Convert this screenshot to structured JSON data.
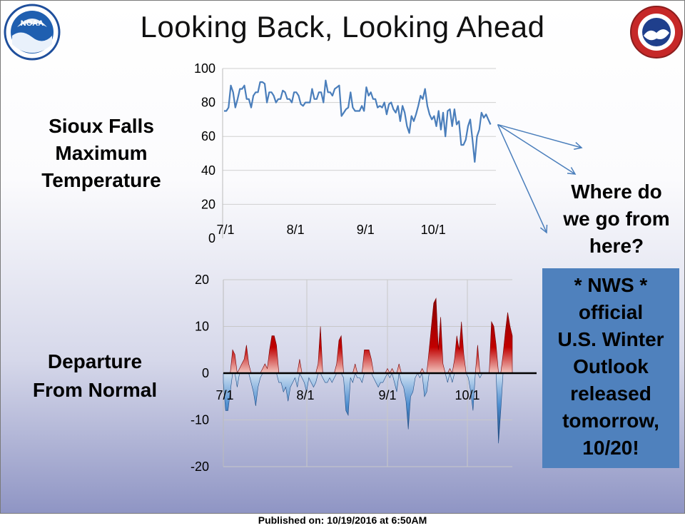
{
  "title": "Looking Back, Looking Ahead",
  "footer": "Published on: 10/19/2016 at 6:50AM",
  "left_labels": {
    "top_line1": "Sioux Falls",
    "top_line2": "Maximum",
    "top_line3": "Temperature",
    "bottom_line1": "Departure",
    "bottom_line2": "From Normal"
  },
  "question": {
    "line1": "Where do",
    "line2": "we go from",
    "line3": "here?"
  },
  "outlook": {
    "line1": "* NWS *",
    "line2": "official",
    "line3": "U.S. Winter",
    "line4": "Outlook",
    "line5": "released",
    "line6": "tomorrow,",
    "line7": "10/20!",
    "box_color": "#4f81bd"
  },
  "logos": {
    "left": "NOAA",
    "right_icon": "nws-logo-icon"
  },
  "chart_data": [
    {
      "type": "line",
      "ylim": [
        0,
        100
      ],
      "yticks": [
        0,
        20,
        40,
        60,
        80,
        100
      ],
      "xticks": [
        "7/1",
        "8/1",
        "9/1",
        "10/1"
      ],
      "start": "7/1",
      "color": "#4a7ebb",
      "values": [
        75,
        75,
        77,
        90,
        86,
        77,
        82,
        88,
        88,
        90,
        82,
        82,
        77,
        84,
        86,
        86,
        92,
        92,
        91,
        80,
        86,
        86,
        84,
        80,
        82,
        82,
        87,
        86,
        82,
        82,
        80,
        86,
        86,
        84,
        79,
        78,
        80,
        80,
        80,
        88,
        82,
        82,
        86,
        86,
        80,
        93,
        86,
        86,
        84,
        88,
        89,
        90,
        72,
        74,
        76,
        77,
        86,
        77,
        75,
        75,
        75,
        78,
        75,
        89,
        84,
        86,
        82,
        82,
        77,
        78,
        77,
        80,
        73,
        79,
        80,
        76,
        74,
        78,
        69,
        78,
        74,
        66,
        62,
        72,
        69,
        73,
        78,
        84,
        82,
        88,
        78,
        73,
        70,
        72,
        66,
        75,
        64,
        74,
        60,
        75,
        76,
        66,
        76,
        67,
        69,
        55,
        55,
        58,
        66,
        70,
        58,
        45,
        60,
        64,
        74,
        71,
        73,
        70,
        67
      ],
      "annotation_arrows_from_last_point": 3
    },
    {
      "type": "area",
      "ylim": [
        -20,
        20
      ],
      "yticks": [
        -20,
        -10,
        0,
        10,
        20
      ],
      "xticks": [
        "7/1",
        "8/1",
        "9/1",
        "10/1"
      ],
      "start": "7/1",
      "positive_color": "#c00000",
      "negative_color": "#2e6da4",
      "values": [
        -2,
        -8,
        -8,
        -4,
        5,
        4,
        -3,
        1,
        2,
        3,
        6,
        2,
        -2,
        -4,
        -7,
        -3,
        -1,
        1,
        2,
        1,
        5,
        8,
        8,
        6,
        -2,
        -2,
        -4,
        -3,
        -6,
        -3,
        -2,
        -1,
        -3,
        3,
        -1,
        -2,
        -4,
        -1,
        -2,
        -3,
        -2,
        2,
        10,
        -1,
        -2,
        -2,
        -1,
        -2,
        -1,
        2,
        7,
        8,
        -1,
        -8,
        -9,
        -1,
        -2,
        2,
        -1,
        -1,
        -2,
        5,
        5,
        5,
        3,
        -1,
        -2,
        -3,
        -2,
        -2,
        -1,
        1,
        -1,
        1,
        -2,
        -4,
        2,
        -2,
        -3,
        -6,
        -12,
        -5,
        -4,
        -1,
        0,
        -1,
        1,
        -5,
        -4,
        5,
        10,
        15,
        16,
        5,
        12,
        2,
        0,
        -2,
        1,
        -2,
        3,
        8,
        5,
        11,
        4,
        0,
        -1,
        -4,
        -8,
        0,
        6,
        -1,
        0,
        0,
        0,
        0,
        11,
        10,
        6,
        -15,
        -8,
        4,
        9,
        13,
        10,
        8
      ]
    }
  ]
}
